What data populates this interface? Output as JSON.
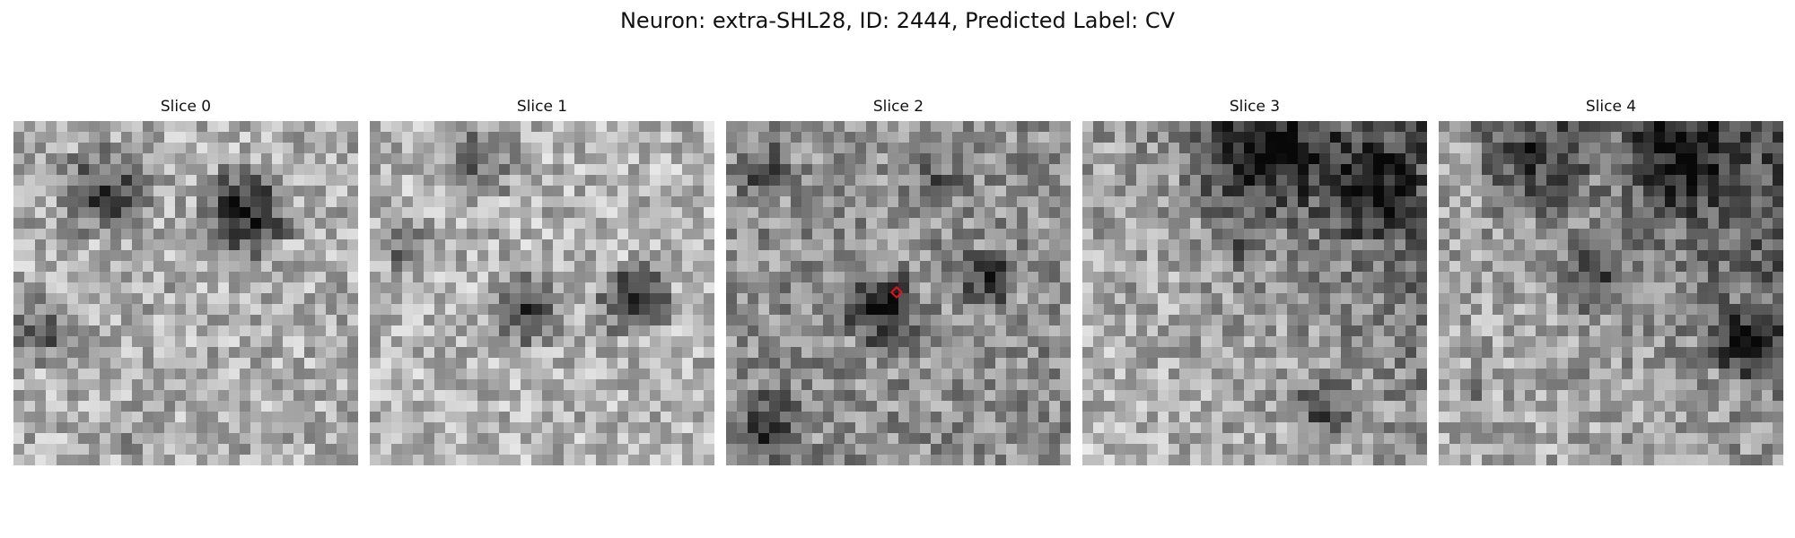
{
  "figure": {
    "title": "Neuron: extra-SHL28, ID: 2444, Predicted Label: CV"
  },
  "slices": [
    {
      "title": "Slice 0",
      "has_marker": false
    },
    {
      "title": "Slice 1",
      "has_marker": false
    },
    {
      "title": "Slice 2",
      "has_marker": true
    },
    {
      "title": "Slice 3",
      "has_marker": false
    },
    {
      "title": "Slice 4",
      "has_marker": false
    }
  ],
  "colors": {
    "marker": "#e8101a",
    "background": "#ffffff"
  }
}
